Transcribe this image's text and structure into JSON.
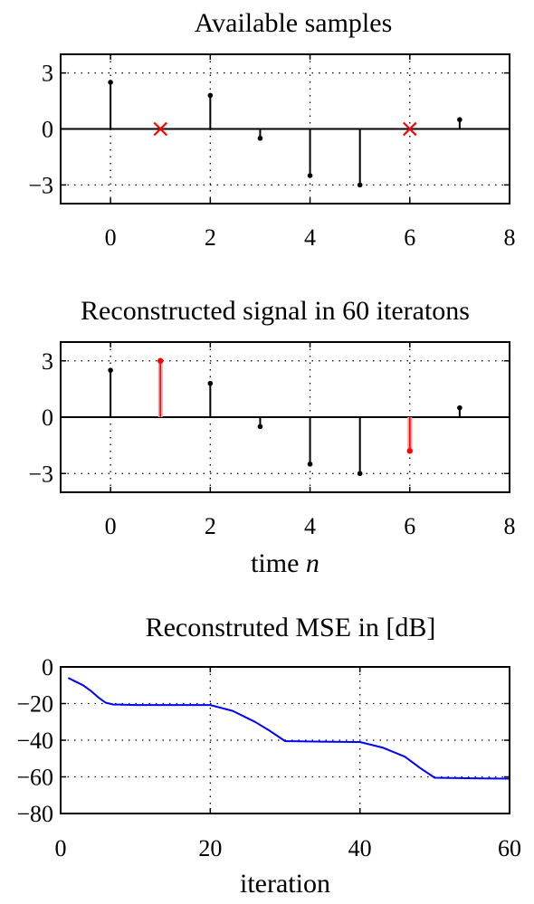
{
  "chart_data": [
    {
      "type": "stem",
      "title": "Available samples",
      "xlabel": "",
      "ylabel": "",
      "xlim": [
        -1,
        8
      ],
      "ylim": [
        -4,
        4
      ],
      "xticks": [
        0,
        2,
        4,
        6,
        8
      ],
      "yticks": [
        3,
        0,
        -3
      ],
      "grid": true,
      "stem_color": "#000000",
      "marker_color": "#ff0000",
      "x": [
        0,
        2,
        3,
        4,
        5,
        7
      ],
      "values": [
        2.5,
        1.8,
        -0.5,
        -2.5,
        -3.0,
        0.5
      ],
      "missing_x": [
        1,
        6
      ],
      "reconstructed_x": [],
      "reconstructed_values": []
    },
    {
      "type": "stem",
      "title": "Reconstructed signal in  60  iteratons",
      "xlabel_prefix": "time ",
      "xlabel_var": "n",
      "ylabel": "",
      "xlim": [
        -1,
        8
      ],
      "ylim": [
        -4,
        4
      ],
      "xticks": [
        0,
        2,
        4,
        6,
        8
      ],
      "yticks": [
        3,
        0,
        -3
      ],
      "grid": true,
      "stem_color": "#000000",
      "marker_color": "#ff0000",
      "x": [
        0,
        2,
        3,
        4,
        5,
        7
      ],
      "values": [
        2.5,
        1.8,
        -0.5,
        -2.5,
        -3.0,
        0.5
      ],
      "missing_x": [],
      "reconstructed_x": [
        1,
        6
      ],
      "reconstructed_values": [
        3.0,
        -1.8
      ]
    },
    {
      "type": "line",
      "title": "Reconstruted MSE in [dB]",
      "xlabel": "iteration",
      "ylabel": "",
      "xlim": [
        0,
        60
      ],
      "ylim": [
        -80,
        0
      ],
      "xticks": [
        0,
        20,
        40,
        60
      ],
      "yticks": [
        0,
        -20,
        -40,
        -60,
        -80
      ],
      "grid": true,
      "line_color": "#0000ff",
      "x": [
        1,
        2,
        3,
        4,
        5,
        6,
        7,
        10,
        15,
        20,
        23,
        26,
        28,
        30,
        35,
        40,
        43,
        46,
        48,
        50,
        55,
        60
      ],
      "values": [
        -6,
        -8,
        -10,
        -13,
        -16.5,
        -19.5,
        -20.5,
        -20.8,
        -20.8,
        -20.8,
        -24,
        -30,
        -35,
        -40.5,
        -40.8,
        -41,
        -44,
        -49,
        -55,
        -60.5,
        -60.8,
        -61
      ]
    }
  ]
}
